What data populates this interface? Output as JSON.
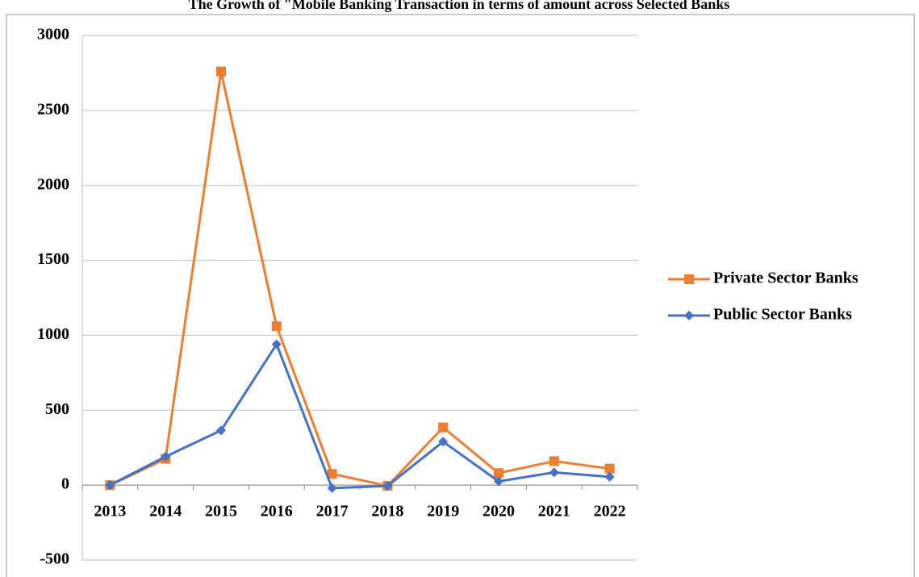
{
  "chart_data": {
    "type": "line",
    "title": "The Growth of \"Mobile Banking Transaction in terms of amount across Selected Banks",
    "categories": [
      "2013",
      "2014",
      "2015",
      "2016",
      "2017",
      "2018",
      "2019",
      "2020",
      "2021",
      "2022"
    ],
    "series": [
      {
        "name": "Private Sector Banks",
        "color": "#ed7d31",
        "marker": "square",
        "values": [
          0,
          175,
          2760,
          1060,
          75,
          -5,
          385,
          80,
          160,
          110
        ]
      },
      {
        "name": "Public Sector Banks",
        "color": "#4472c4",
        "marker": "diamond",
        "values": [
          0,
          190,
          365,
          940,
          -20,
          -5,
          290,
          25,
          85,
          55
        ]
      }
    ],
    "ylim": [
      -500,
      3000
    ],
    "yticks": [
      -500,
      0,
      500,
      1000,
      1500,
      2000,
      2500,
      3000
    ],
    "grid": true,
    "legend": "right"
  }
}
